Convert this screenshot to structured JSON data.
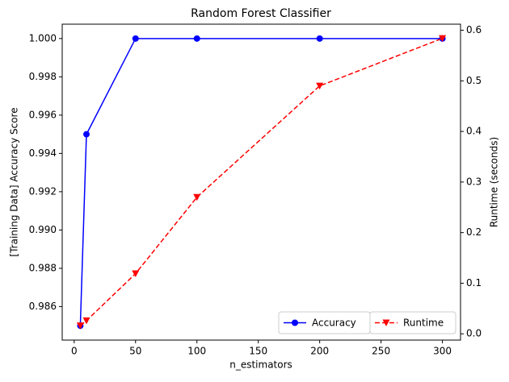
{
  "chart_data": {
    "type": "line",
    "title": "Random Forest Classifier",
    "xlabel": "n_estimators",
    "ylabel": "[Training Data] Accuracy Score",
    "y2label": "Runtime (seconds)",
    "x": [
      5,
      10,
      50,
      100,
      200,
      300
    ],
    "series": [
      {
        "name": "Accuracy",
        "color": "#0000ff",
        "marker": "circle",
        "linestyle": "solid",
        "values": [
          0.985,
          0.995,
          1.0,
          1.0,
          1.0,
          1.0
        ]
      },
      {
        "name": "Runtime",
        "color": "#ff0000",
        "marker": "triangle-down",
        "linestyle": "dashed",
        "axis": "y2",
        "values": [
          0.016,
          0.026,
          0.119,
          0.27,
          0.49,
          0.584
        ]
      }
    ],
    "xlim": [
      -9.75,
      314.75
    ],
    "xticks": [
      0,
      50,
      100,
      150,
      200,
      250,
      300
    ],
    "ylim": [
      0.98425,
      1.00075
    ],
    "yticks": [
      0.986,
      0.988,
      {
        "value": 0.99,
        "label": "0.990"
      },
      0.992,
      0.994,
      0.996,
      0.998,
      {
        "value": 1.0,
        "label": "1.000"
      }
    ],
    "y2lim": [
      -0.0124,
      0.612
    ],
    "y2ticks": [
      {
        "value": 0.0,
        "label": "0.0"
      },
      0.1,
      0.2,
      0.3,
      0.4,
      0.5,
      0.6
    ],
    "legend": "lower right"
  }
}
